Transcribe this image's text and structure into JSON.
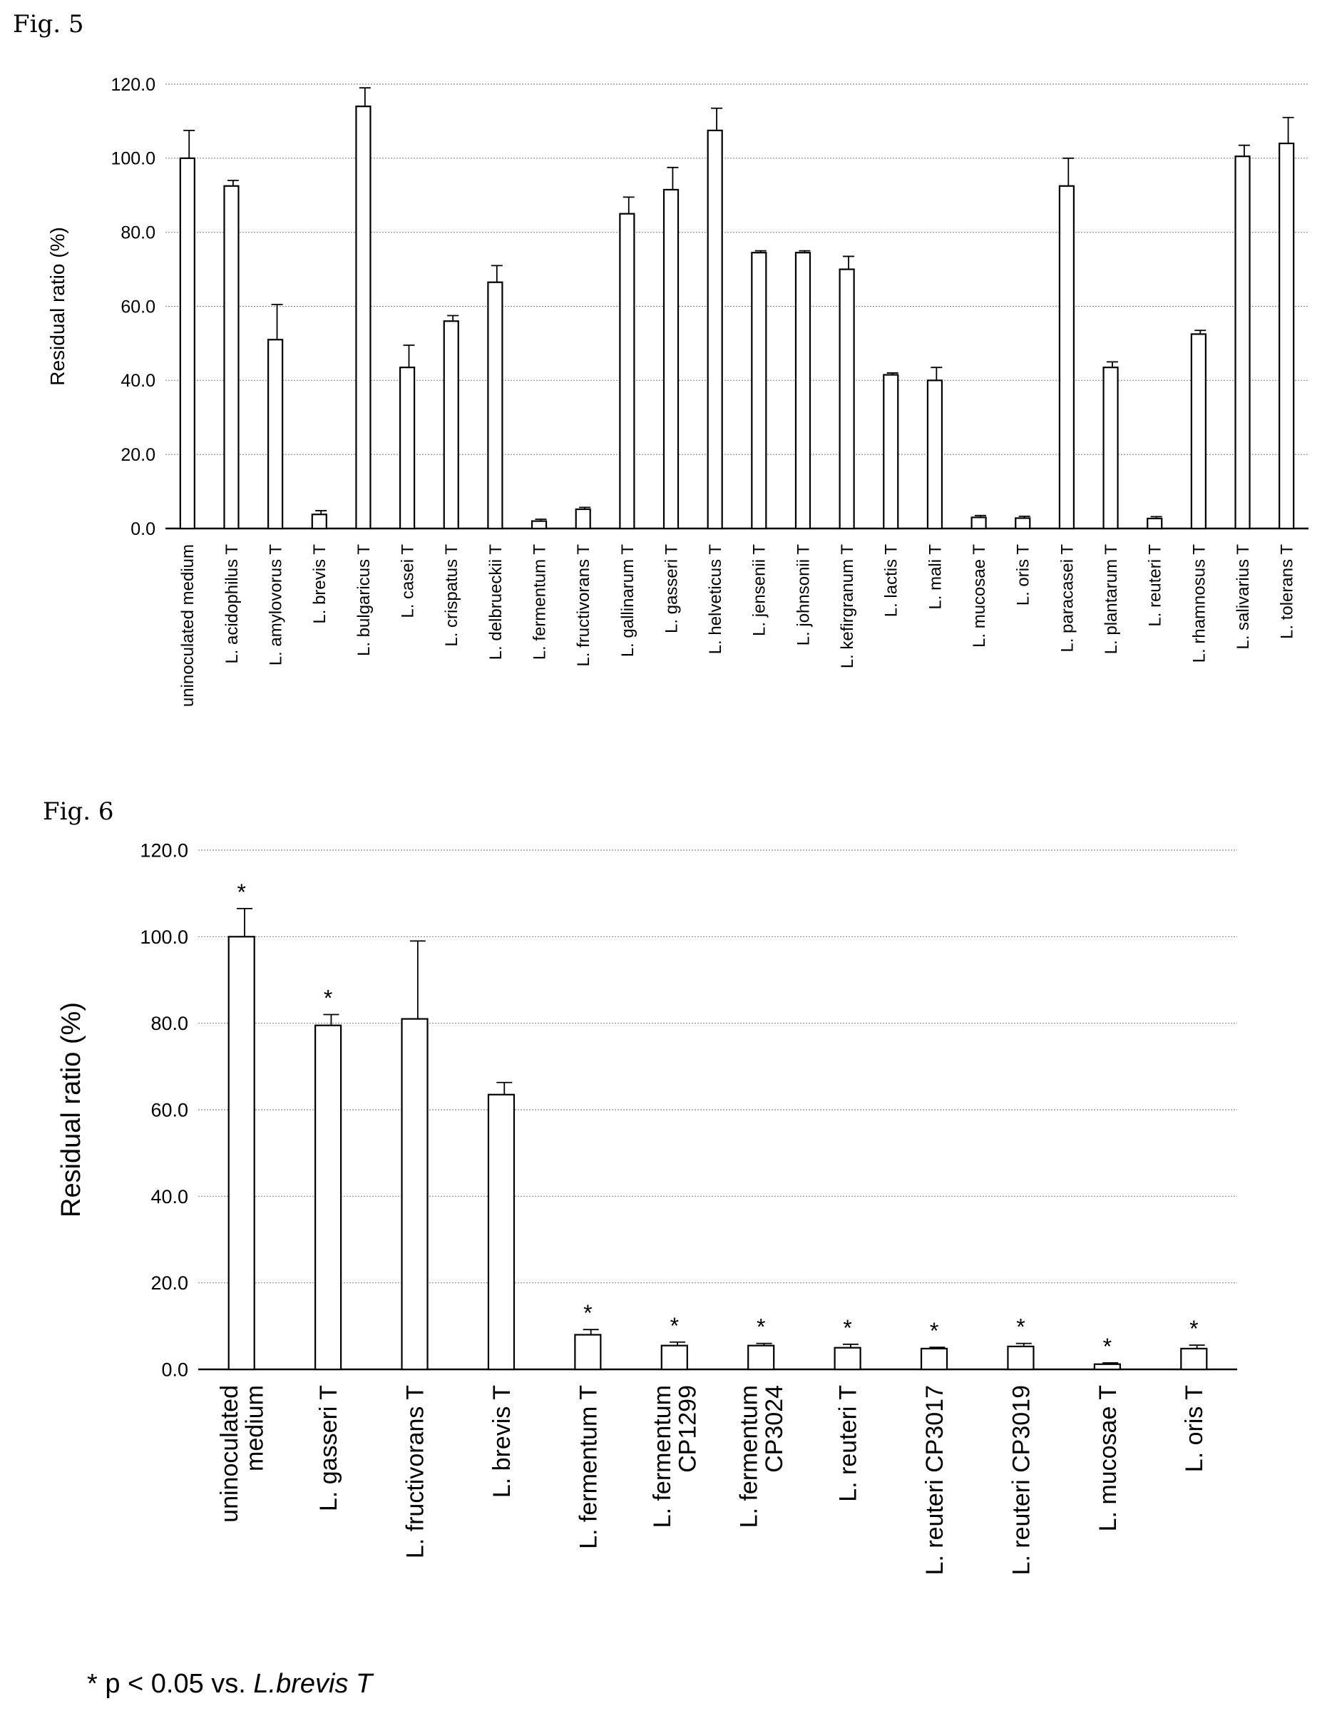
{
  "figures": [
    {
      "label": "Fig. 5"
    },
    {
      "label": "Fig. 6"
    }
  ],
  "chart_data": [
    {
      "type": "bar",
      "ylabel": "Residual ratio (%)",
      "ylim": [
        0,
        120
      ],
      "yticks": [
        "0.0",
        "20.0",
        "40.0",
        "60.0",
        "80.0",
        "100.0",
        "120.0"
      ],
      "grid": true,
      "categories": [
        [
          "uninoculated medium"
        ],
        [
          "L. acidophilus T"
        ],
        [
          "L. amylovorus T"
        ],
        [
          "L. brevis T"
        ],
        [
          "L. bulgaricus T"
        ],
        [
          "L. casei T"
        ],
        [
          "L. crispatus T"
        ],
        [
          "L. delbrueckii T"
        ],
        [
          "L. fermentum T"
        ],
        [
          "L. fructivorans T"
        ],
        [
          "L. gallinarum T"
        ],
        [
          "L. gasseri T"
        ],
        [
          "L. helveticus T"
        ],
        [
          "L. jensenii T"
        ],
        [
          "L. johnsonii T"
        ],
        [
          "L. kefirgranum T"
        ],
        [
          "L. lactis T"
        ],
        [
          "L. mali T"
        ],
        [
          "L. mucosae T"
        ],
        [
          "L. oris T"
        ],
        [
          "L. paracasei T"
        ],
        [
          "L. plantarum T"
        ],
        [
          "L. reuteri T"
        ],
        [
          "L. rhamnosus T"
        ],
        [
          "L. salivarius T"
        ],
        [
          "L. tolerans T"
        ]
      ],
      "values": [
        100.0,
        92.5,
        51.0,
        3.8,
        114.0,
        43.5,
        56.0,
        66.5,
        2.0,
        5.2,
        85.0,
        91.5,
        107.5,
        74.5,
        74.5,
        70.0,
        41.5,
        40.0,
        3.0,
        2.8,
        92.5,
        43.5,
        2.7,
        52.5,
        100.5,
        104.0
      ],
      "errors": [
        7.5,
        1.5,
        9.5,
        1.0,
        5.0,
        6.0,
        1.5,
        4.5,
        0.5,
        0.5,
        4.5,
        6.0,
        6.0,
        0.5,
        0.5,
        3.5,
        0.5,
        3.5,
        0.5,
        0.5,
        7.5,
        1.5,
        0.5,
        1.0,
        3.0,
        7.0
      ],
      "significance": []
    },
    {
      "type": "bar",
      "ylabel": "Residual ratio (%)",
      "ylim": [
        0,
        120
      ],
      "yticks": [
        "0.0",
        "20.0",
        "40.0",
        "60.0",
        "80.0",
        "100.0",
        "120.0"
      ],
      "grid": true,
      "categories": [
        [
          "uninoculated",
          "medium"
        ],
        [
          "L. gasseri T"
        ],
        [
          "L. fructivorans T"
        ],
        [
          "L. brevis T"
        ],
        [
          "L. fermentum T"
        ],
        [
          "L. fermentum",
          "CP1299"
        ],
        [
          "L. fermentum",
          "CP3024"
        ],
        [
          "L. reuteri T"
        ],
        [
          "L. reuteri CP3017"
        ],
        [
          "L. reuteri CP3019"
        ],
        [
          "L. mucosae T"
        ],
        [
          "L. oris T"
        ]
      ],
      "values": [
        100.0,
        79.5,
        81.0,
        63.5,
        8.0,
        5.5,
        5.5,
        5.0,
        4.8,
        5.3,
        1.2,
        4.8
      ],
      "errors": [
        6.5,
        2.5,
        18.0,
        2.8,
        1.2,
        0.8,
        0.5,
        0.8,
        0.3,
        0.7,
        0.3,
        0.8
      ],
      "significance": [
        "*",
        "*",
        "",
        "",
        "*",
        "*",
        "*",
        "*",
        "*",
        "*",
        "*",
        "*"
      ]
    }
  ],
  "footnote": {
    "prefix": "* p < 0.05 vs. ",
    "italic": "L.brevis T"
  }
}
